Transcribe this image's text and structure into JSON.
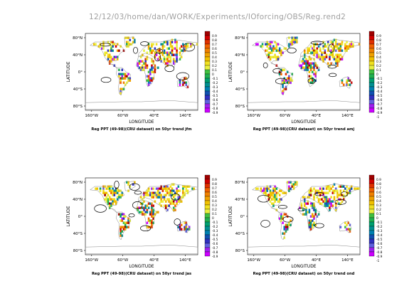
{
  "page_title": "12/12/03/home/dan/WORK/Experiments/IOforcing/OBS/Reg.rend2",
  "colors": {
    "palette": [
      "#cc00ff",
      "#a020f0",
      "#6060e0",
      "#3030c0",
      "#1050b0",
      "#0080b0",
      "#009090",
      "#00a070",
      "#20b050",
      "#40c040",
      "#e8f040",
      "#f0e020",
      "#f0c000",
      "#f0a000",
      "#f08000",
      "#f06000",
      "#e03000",
      "#d00000",
      "#a00000"
    ],
    "land_outline": "#000000",
    "coast_outline": "#a0a0a0"
  },
  "chart_data": [
    {
      "type": "heatmap",
      "title": "Reg PPT (49-98)(CRU dataset) on 50yr trend jfm",
      "xlabel": "LONGITUDE",
      "ylabel": "LATITUDE",
      "xticks": [
        "160°W",
        "60°W",
        "40°E",
        "140°E"
      ],
      "yticks": [
        "80°N",
        "40°N",
        "0°",
        "40°S",
        "80°S"
      ],
      "colorbar": {
        "ticks": [
          "0.9",
          "0.8",
          "0.7",
          "0.6",
          "0.5",
          "0.4",
          "0.3",
          "0.2",
          "0.1",
          "0",
          "-0.1",
          "-0.2",
          "-0.3",
          "-0.4",
          "-0.5",
          "-0.6",
          "-0.7",
          "-0.8",
          "-0.9"
        ],
        "range": [
          -1,
          1
        ]
      }
    },
    {
      "type": "heatmap",
      "title": "Reg PPT (49-98)(CRU dataset) on 50yr trend amj",
      "xlabel": "LONGITUDE",
      "ylabel": "LATITUDE",
      "xticks": [
        "160°W",
        "60°W",
        "40°E",
        "140°E"
      ],
      "yticks": [
        "80°N",
        "40°N",
        "0°",
        "40°S",
        "80°S"
      ],
      "colorbar": {
        "ticks": [
          "0.9",
          "0.8",
          "0.7",
          "0.6",
          "0.5",
          "0.4",
          "0.3",
          "0.2",
          "0.1",
          "0",
          "-0.1",
          "-0.2",
          "-0.3",
          "-0.4",
          "-0.5",
          "-0.6",
          "-0.7",
          "-0.8",
          "-0.9",
          "-1"
        ],
        "range": [
          -1,
          1
        ]
      }
    },
    {
      "type": "heatmap",
      "title": "Reg PPT (49-98)(CRU dataset) on 50yr trend jas",
      "xlabel": "LONGITUDE",
      "ylabel": "LATITUDE",
      "xticks": [
        "160°W",
        "60°W",
        "40°E",
        "140°E"
      ],
      "yticks": [
        "80°N",
        "40°N",
        "0°",
        "40°S",
        "80°S"
      ],
      "colorbar": {
        "ticks": [
          "0.9",
          "0.8",
          "0.7",
          "0.6",
          "0.5",
          "0.4",
          "0.3",
          "0.2",
          "0.1",
          "0",
          "-0.1",
          "-0.2",
          "-0.3",
          "-0.4",
          "-0.5",
          "-0.6",
          "-0.7",
          "-0.8",
          "-0.9"
        ],
        "range": [
          -1,
          1
        ]
      }
    },
    {
      "type": "heatmap",
      "title": "Reg PPT (49-98)(CRU dataset) on 50yr trend ond",
      "xlabel": "LONGITUDE",
      "ylabel": "LATITUDE",
      "xticks": [
        "160°W",
        "60°W",
        "40°E",
        "140°E"
      ],
      "yticks": [
        "80°N",
        "40°N",
        "0°",
        "40°S",
        "80°S"
      ],
      "colorbar": {
        "ticks": [
          "0.9",
          "0.8",
          "0.7",
          "0.6",
          "0.5",
          "0.4",
          "0.3",
          "0.2",
          "0.1",
          "0",
          "-0.1",
          "-0.2",
          "-0.3",
          "-0.4",
          "-0.5",
          "-0.6",
          "-0.7",
          "-0.8",
          "-0.9",
          "-1"
        ],
        "range": [
          -1,
          1
        ]
      }
    }
  ]
}
